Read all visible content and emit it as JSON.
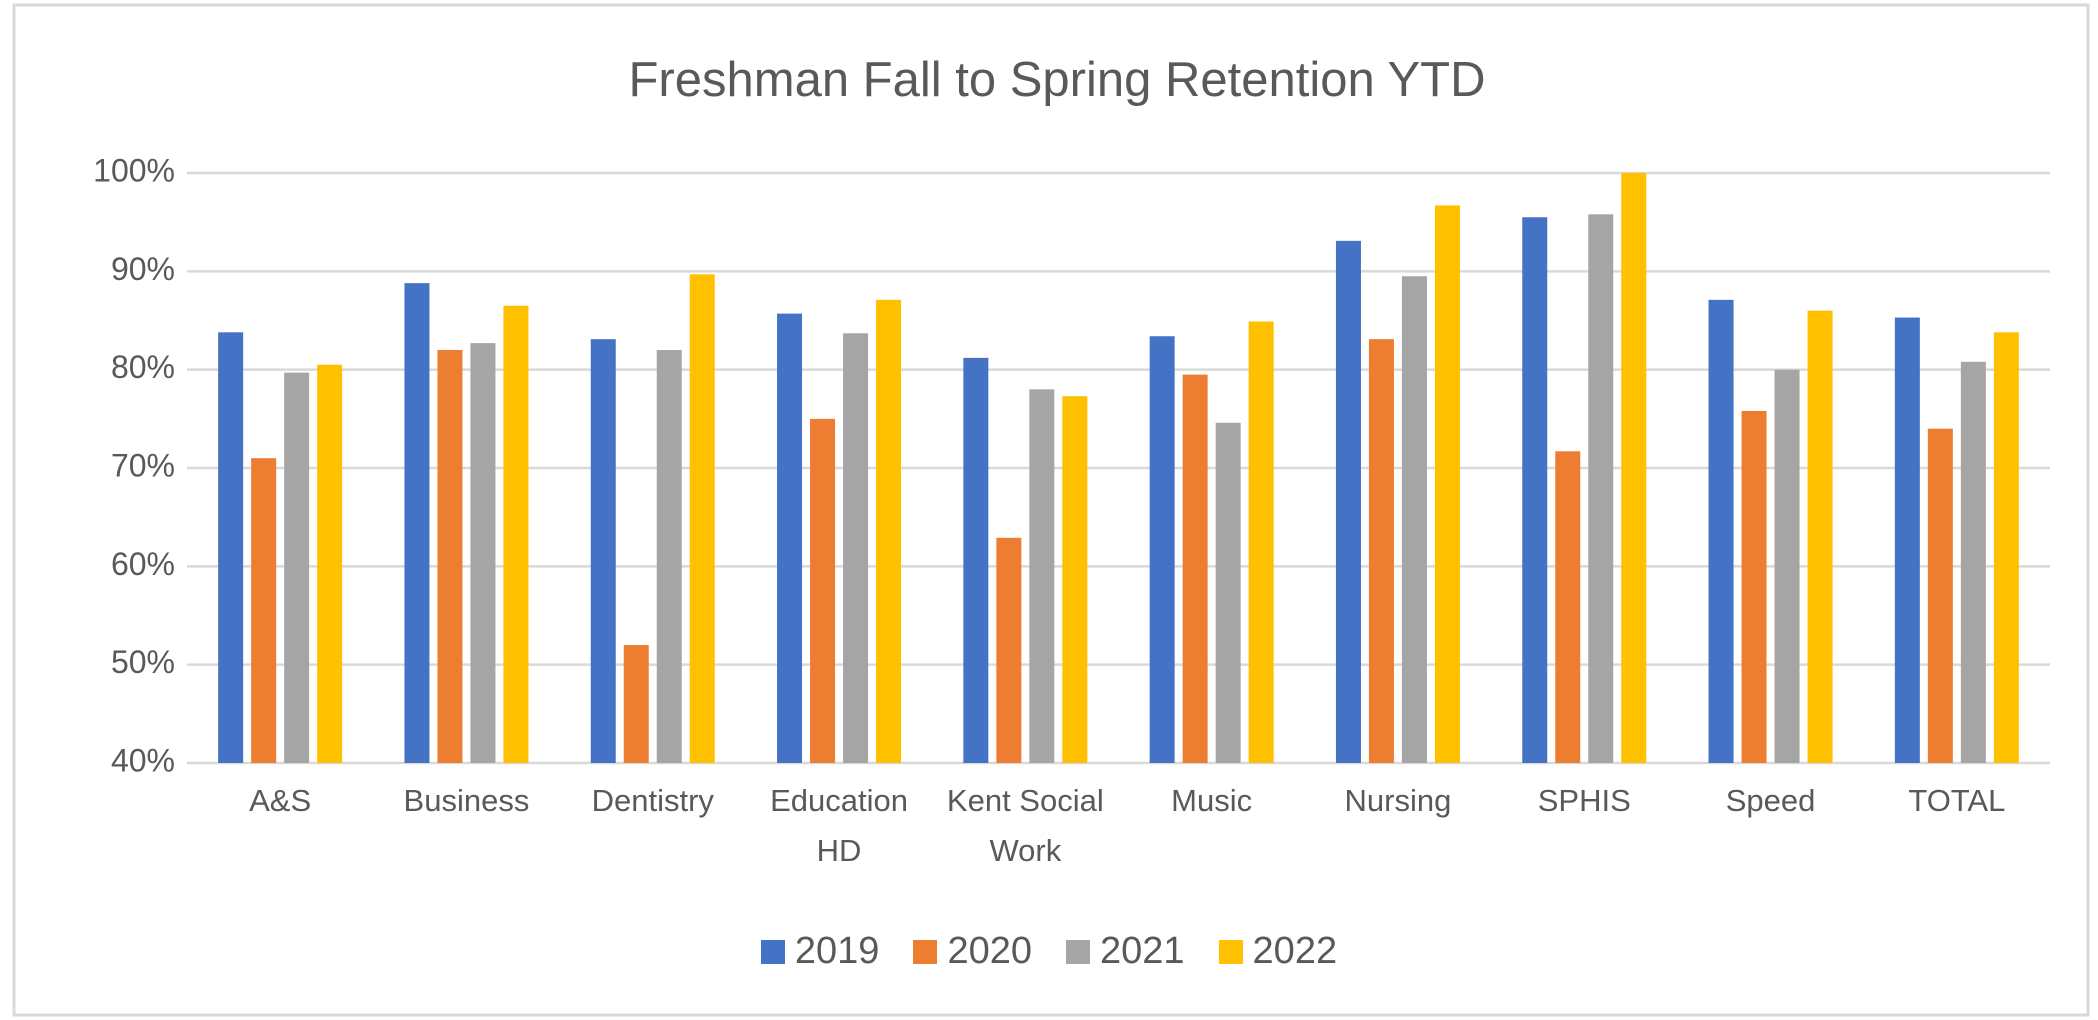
{
  "chart_data": {
    "type": "bar",
    "title": "Freshman Fall to Spring Retention YTD",
    "categories": [
      "A&S",
      "Business",
      "Dentistry",
      "Education HD",
      "Kent Social Work",
      "Music",
      "Nursing",
      "SPHIS",
      "Speed",
      "TOTAL"
    ],
    "series": [
      {
        "name": "2019",
        "color": "#4472c4",
        "values": [
          83.8,
          88.8,
          83.1,
          85.7,
          81.2,
          83.4,
          93.1,
          95.5,
          87.1,
          85.3
        ]
      },
      {
        "name": "2020",
        "color": "#ed7d31",
        "values": [
          71.0,
          82.0,
          52.0,
          75.0,
          62.9,
          79.5,
          83.1,
          71.7,
          75.8,
          74.0
        ]
      },
      {
        "name": "2021",
        "color": "#a5a5a5",
        "values": [
          79.7,
          82.7,
          82.0,
          83.7,
          78.0,
          74.6,
          89.5,
          95.8,
          80.0,
          80.8
        ]
      },
      {
        "name": "2022",
        "color": "#ffc000",
        "values": [
          80.5,
          86.5,
          89.7,
          87.1,
          77.3,
          84.9,
          96.7,
          100,
          86.0,
          83.8
        ]
      }
    ],
    "ylim": [
      40,
      100
    ],
    "yticks": [
      {
        "value": 40,
        "label": "40%"
      },
      {
        "value": 50,
        "label": "50%"
      },
      {
        "value": 60,
        "label": "60%"
      },
      {
        "value": 70,
        "label": "70%"
      },
      {
        "value": 80,
        "label": "80%"
      },
      {
        "value": 90,
        "label": "90%"
      },
      {
        "value": 100,
        "label": "100%"
      }
    ],
    "grid": true,
    "legend": "bottom"
  }
}
